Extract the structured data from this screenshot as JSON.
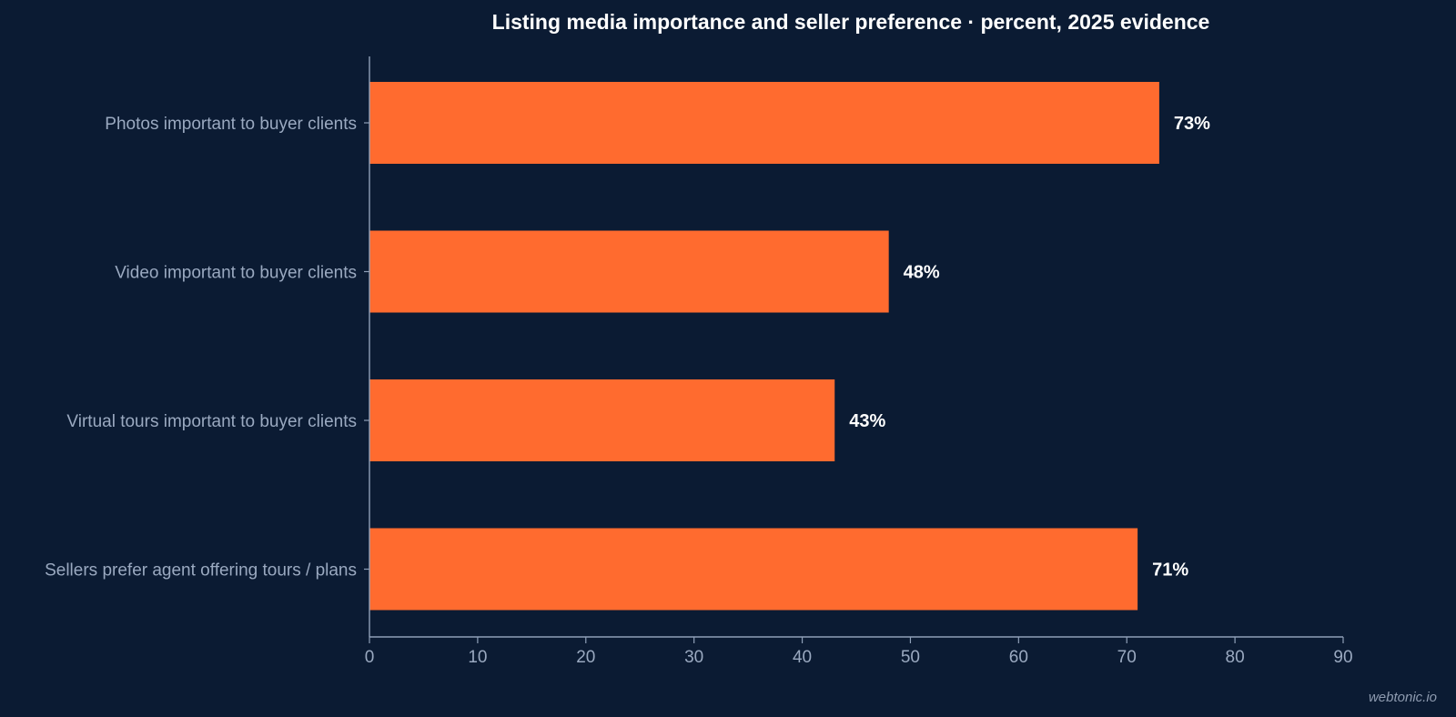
{
  "chart_data": {
    "type": "bar",
    "orientation": "horizontal",
    "title": "Listing media importance and seller preference · percent, 2025 evidence",
    "categories": [
      "Photos important to buyer clients",
      "Video important to buyer clients",
      "Virtual tours important to buyer clients",
      "Sellers prefer agent offering tours / plans"
    ],
    "values": [
      73,
      48,
      43,
      71
    ],
    "value_labels": [
      "73%",
      "48%",
      "43%",
      "71%"
    ],
    "xlim": [
      0,
      90
    ],
    "xticks": [
      0,
      10,
      20,
      30,
      40,
      50,
      60,
      70,
      80,
      90
    ],
    "xlabel": "",
    "ylabel": "",
    "grid": false,
    "bar_color": "#ff6b2f",
    "background_color": "#0b1b33",
    "axis_color": "#8fa0b8"
  },
  "watermark": "webtonic.io"
}
